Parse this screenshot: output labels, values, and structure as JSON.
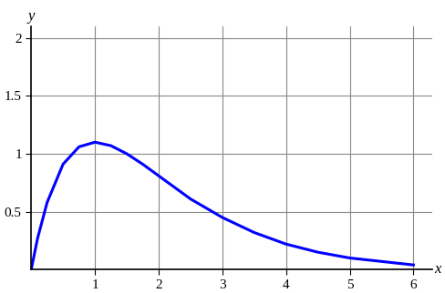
{
  "chart_data": {
    "type": "line",
    "x_label": "x",
    "y_label": "y",
    "x": [
      0,
      0.1,
      0.25,
      0.5,
      0.75,
      1,
      1.25,
      1.5,
      1.75,
      2,
      2.5,
      3,
      3.5,
      4,
      4.5,
      5,
      5.5,
      6
    ],
    "values": [
      0,
      0.27,
      0.58,
      0.91,
      1.06,
      1.1,
      1.07,
      1.0,
      0.91,
      0.81,
      0.61,
      0.45,
      0.32,
      0.22,
      0.15,
      0.1,
      0.07,
      0.04
    ],
    "color": "#0000ff",
    "xlim": [
      0,
      6.3
    ],
    "ylim": [
      0,
      2.1
    ],
    "xticks": [
      1,
      2,
      3,
      4,
      5,
      6
    ],
    "yticks": [
      0.5,
      1,
      1.5,
      2
    ],
    "grid": true
  }
}
